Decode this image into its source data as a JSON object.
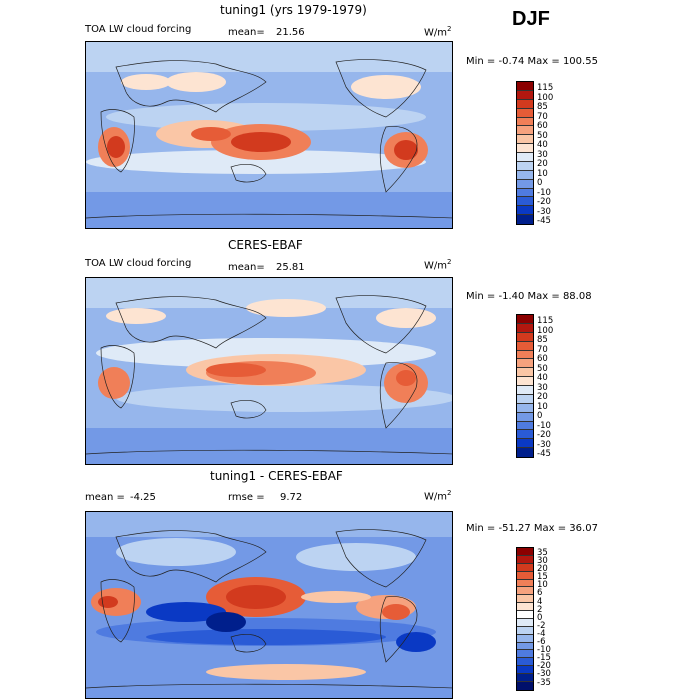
{
  "season": "DJF",
  "panels": [
    {
      "title": "tuning1 (yrs 1979-1979)",
      "subtitle": "TOA LW cloud forcing",
      "mean_label": "mean=",
      "mean": "21.56",
      "units": "W/m",
      "units_exp": "2",
      "minmax": "Min =  -0.74 Max = 100.55",
      "colorbar_ticks": [
        "115",
        "100",
        "85",
        "70",
        "60",
        "50",
        "40",
        "30",
        "20",
        "10",
        "0",
        "-10",
        "-20",
        "-30",
        "-45"
      ],
      "colorbar_colors": [
        "#8b0000",
        "#b2170f",
        "#d23a1e",
        "#e65c37",
        "#f07f58",
        "#f6a27e",
        "#fac6a6",
        "#fde4d2",
        "#dfeaf7",
        "#bcd3f2",
        "#96b6ec",
        "#7399e6",
        "#4f7be0",
        "#2a5bd6",
        "#0a39c4",
        "#001f8c"
      ]
    },
    {
      "title": "CERES-EBAF",
      "subtitle": "TOA LW cloud forcing",
      "mean_label": "mean=",
      "mean": "25.81",
      "units": "W/m",
      "units_exp": "2",
      "minmax": "Min =  -1.40 Max =  88.08",
      "colorbar_ticks": [
        "115",
        "100",
        "85",
        "70",
        "60",
        "50",
        "40",
        "30",
        "20",
        "10",
        "0",
        "-10",
        "-20",
        "-30",
        "-45"
      ],
      "colorbar_colors": [
        "#8b0000",
        "#b2170f",
        "#d23a1e",
        "#e65c37",
        "#f07f58",
        "#f6a27e",
        "#fac6a6",
        "#fde4d2",
        "#dfeaf7",
        "#bcd3f2",
        "#96b6ec",
        "#7399e6",
        "#4f7be0",
        "#2a5bd6",
        "#0a39c4",
        "#001f8c"
      ]
    },
    {
      "title": "tuning1 - CERES-EBAF",
      "subtitle": "",
      "mean_label": "mean =",
      "mean": "-4.25",
      "rmse_label": "rmse =",
      "rmse": "9.72",
      "units": "W/m",
      "units_exp": "2",
      "minmax": "Min = -51.27 Max =  36.07",
      "colorbar_ticks": [
        "35",
        "30",
        "20",
        "15",
        "10",
        "6",
        "4",
        "2",
        "0",
        "-2",
        "-4",
        "-6",
        "-10",
        "-15",
        "-20",
        "-30",
        "-35"
      ],
      "colorbar_colors": [
        "#8b0000",
        "#b2170f",
        "#d23a1e",
        "#e65c37",
        "#f07f58",
        "#f6a27e",
        "#fac6a6",
        "#fde4d2",
        "#ffffff",
        "#dfeaf7",
        "#bcd3f2",
        "#96b6ec",
        "#7399e6",
        "#4f7be0",
        "#2a5bd6",
        "#0a39c4",
        "#001f8c",
        "#00106b"
      ]
    }
  ]
}
